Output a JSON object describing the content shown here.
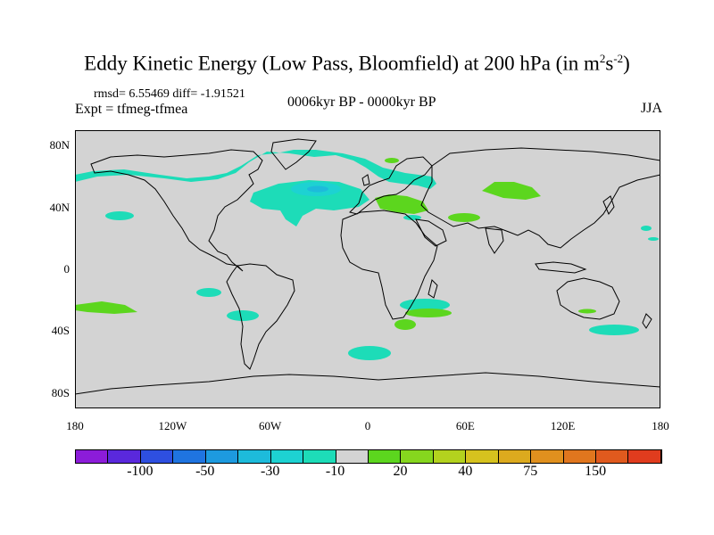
{
  "figure": {
    "title": "Eddy Kinetic Energy (Low Pass, Bloomfield) at 200 hPa (in m",
    "title_sup1": "2",
    "title_mid": "s",
    "title_sup2": "-2",
    "title_end": ")",
    "stats": "rmsd= 6.55469 diff= -1.91521",
    "expt": "Expt = tfmeg-tfmea",
    "period": "0006kyr BP - 0000kyr BP",
    "season": "JJA"
  },
  "map": {
    "type": "global-anomaly-map",
    "projection": "cylindrical equidistant",
    "lon_range": [
      -180,
      180
    ],
    "lat_range": [
      -90,
      90
    ],
    "background_color": "#d3d3d3",
    "y_ticks": [
      {
        "value": 80,
        "label": "80N"
      },
      {
        "value": 40,
        "label": "40N"
      },
      {
        "value": 0,
        "label": "0"
      },
      {
        "value": -40,
        "label": "40S"
      },
      {
        "value": -80,
        "label": "80S"
      }
    ],
    "x_ticks": [
      {
        "value": -180,
        "label": "180"
      },
      {
        "value": -120,
        "label": "120W"
      },
      {
        "value": -60,
        "label": "60W"
      },
      {
        "value": 0,
        "label": "0"
      },
      {
        "value": 60,
        "label": "60E"
      },
      {
        "value": 120,
        "label": "120E"
      },
      {
        "value": 180,
        "label": "180"
      }
    ]
  },
  "colorbar": {
    "colors": [
      "#8c1cd9",
      "#5a28dc",
      "#2e4fe0",
      "#1f74e0",
      "#1d9adf",
      "#1dbbdb",
      "#1dd2d2",
      "#1ddcb8",
      "#d3d3d3",
      "#5cd61e",
      "#86d61e",
      "#b3d21e",
      "#d6c21e",
      "#dcaa1e",
      "#e0901e",
      "#e0761e",
      "#e05a1e",
      "#e03c1e"
    ],
    "labels": [
      "-100",
      "-50",
      "-30",
      "-10",
      "20",
      "40",
      "75",
      "150"
    ]
  }
}
